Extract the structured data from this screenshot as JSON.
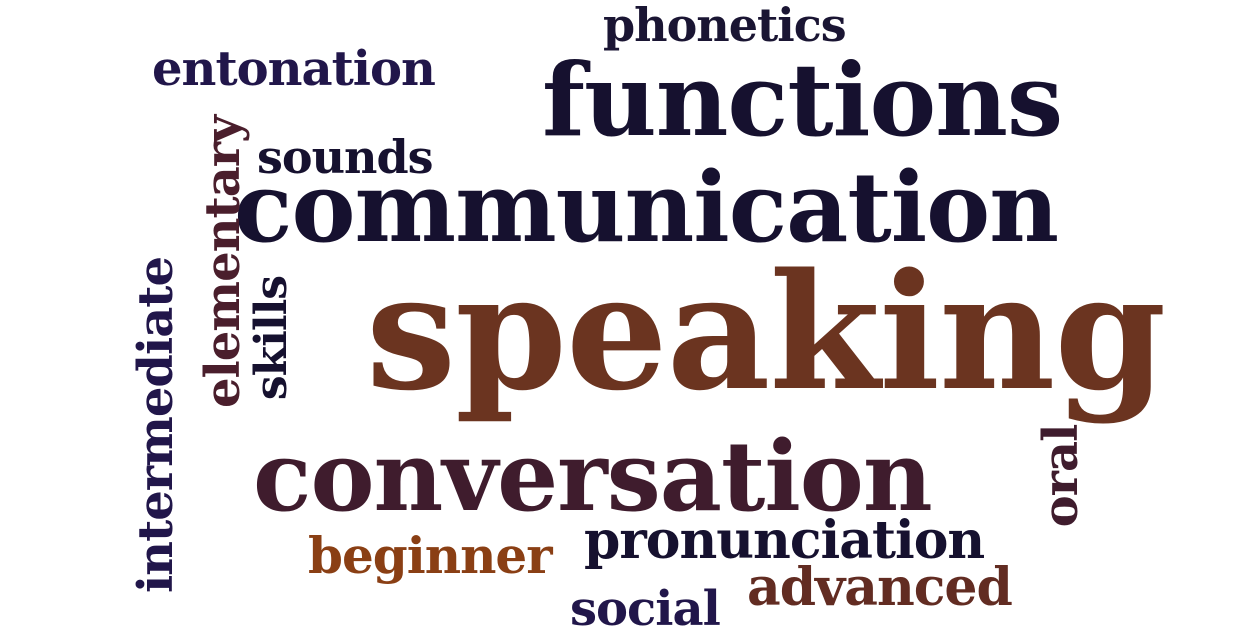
{
  "colors": {
    "navy": "#16112f",
    "indigo": "#21164a",
    "plum": "#3f1c2d",
    "wine": "#4a1e2c",
    "brown": "#6b3420",
    "rust": "#8a3f14",
    "maroon": "#622c22"
  },
  "words": {
    "speaking": "speaking",
    "communication": "communication",
    "conversation": "conversation",
    "functions": "functions",
    "phonetics": "phonetics",
    "entonation": "entonation",
    "sounds": "sounds",
    "elementary": "elementary",
    "intermediate": "intermediate",
    "skills": "skills",
    "oral": "oral",
    "beginner": "beginner",
    "pronunciation": "pronunciation",
    "advanced": "advanced",
    "social": "social"
  }
}
